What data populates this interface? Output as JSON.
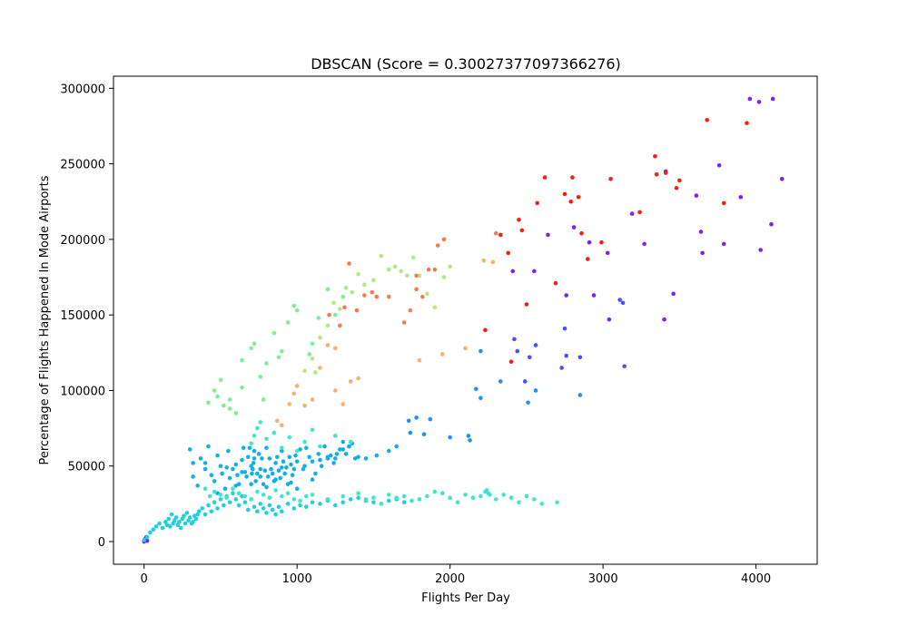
{
  "chart_data": {
    "type": "scatter",
    "title": "DBSCAN (Score = 0.30027377097366276)",
    "xlabel": "Flights Per Day",
    "ylabel": "Percentage of Flights Happened In Mode Airports",
    "xlim": [
      -200,
      4400
    ],
    "ylim": [
      -15000,
      308000
    ],
    "xticks": [
      0,
      1000,
      2000,
      3000,
      4000
    ],
    "xtick_labels": [
      "0",
      "1000",
      "2000",
      "3000",
      "4000"
    ],
    "yticks": [
      0,
      50000,
      100000,
      150000,
      200000,
      250000,
      300000
    ],
    "ytick_labels": [
      "0",
      "50000",
      "100000",
      "150000",
      "200000",
      "250000",
      "300000"
    ],
    "grid": false,
    "legend": "none",
    "colors": [
      "#7a1fff",
      "#4a4fff",
      "#1e90ff",
      "#0fb0e8",
      "#1fd0e0",
      "#3ce8c8",
      "#7af09a",
      "#b4e882",
      "#f8b06a",
      "#f87a4a",
      "#f81c14"
    ],
    "series": [
      {
        "x": [
          3960,
          4020,
          4110,
          4170,
          3760,
          3610,
          3640,
          3650,
          3790,
          3900,
          4100,
          4030,
          3190,
          3410,
          2410,
          2550,
          2640,
          2760,
          2810,
          2910,
          3030,
          3270,
          3460,
          3400,
          2940,
          3040,
          0,
          5,
          10,
          15,
          20
        ],
        "y": [
          293000,
          291000,
          293000,
          240000,
          249000,
          229000,
          205000,
          191000,
          197000,
          228000,
          210000,
          193000,
          217000,
          245000,
          179000,
          179000,
          203000,
          163000,
          208000,
          198000,
          191000,
          197000,
          164000,
          147000,
          163000,
          147000,
          0,
          1000,
          2000,
          3000,
          500
        ]
      },
      {
        "x": [
          2420,
          2560,
          2520,
          2760,
          2850,
          2750,
          2730,
          3110,
          3130,
          3140,
          2490,
          2440
        ],
        "y": [
          134000,
          130000,
          122000,
          123000,
          122000,
          141000,
          115000,
          160000,
          158000,
          116000,
          106000,
          126000
        ]
      },
      {
        "x": [
          2170,
          2200,
          2200,
          2330,
          2510,
          2560,
          2850,
          1740,
          1780,
          1870,
          1830,
          1730,
          2000,
          2120,
          2130
        ],
        "y": [
          101000,
          95000,
          126000,
          106000,
          92000,
          100000,
          97000,
          72000,
          82000,
          81000,
          71000,
          80000,
          69000,
          70000,
          67000
        ]
      },
      {
        "x": [
          300,
          320,
          370,
          400,
          420,
          440,
          460,
          480,
          500,
          510,
          530,
          550,
          560,
          580,
          600,
          610,
          620,
          640,
          650,
          660,
          670,
          680,
          690,
          700,
          705,
          710,
          715,
          720,
          730,
          740,
          750,
          760,
          770,
          780,
          790,
          800,
          810,
          820,
          830,
          840,
          850,
          860,
          870,
          880,
          890,
          900,
          910,
          920,
          930,
          940,
          950,
          960,
          970,
          980,
          990,
          1000,
          1020,
          1040,
          1060,
          1080,
          1100,
          1120,
          1140,
          1160,
          1180,
          1200,
          1220,
          1240,
          1260,
          1280,
          1300,
          1320,
          1340,
          1360,
          1400,
          1450,
          1520,
          1600,
          1650,
          320,
          350,
          400,
          480,
          540,
          600,
          640,
          700,
          720,
          760,
          800,
          860,
          900,
          960,
          1000,
          1050,
          1100,
          1150,
          1200,
          1250,
          1300,
          1340,
          1380
        ],
        "y": [
          61000,
          52000,
          55000,
          48000,
          63000,
          44000,
          40000,
          57000,
          50000,
          45000,
          35000,
          60000,
          42000,
          48000,
          51000,
          44000,
          38000,
          54000,
          62000,
          46000,
          43000,
          56000,
          62000,
          50000,
          45000,
          48000,
          52000,
          60000,
          40000,
          45000,
          58000,
          43000,
          55000,
          38000,
          47000,
          62000,
          43000,
          55000,
          48000,
          45000,
          40000,
          52000,
          56000,
          47000,
          42000,
          60000,
          53000,
          45000,
          49000,
          38000,
          56000,
          51000,
          44000,
          48000,
          57000,
          53000,
          61000,
          48000,
          62000,
          56000,
          53000,
          45000,
          58000,
          50000,
          63000,
          55000,
          57000,
          52000,
          58000,
          61000,
          66000,
          58000,
          63000,
          65000,
          56000,
          55000,
          57000,
          60000,
          63000,
          43000,
          37000,
          52000,
          32000,
          49000,
          37000,
          46000,
          38000,
          55000,
          48000,
          36000,
          41000,
          49000,
          39000,
          35000,
          50000,
          41000,
          54000,
          56000,
          55000,
          61000,
          63000,
          55000
        ]
      },
      {
        "x": [
          0,
          20,
          40,
          60,
          80,
          100,
          120,
          140,
          150,
          160,
          170,
          180,
          190,
          200,
          210,
          220,
          230,
          240,
          250,
          260,
          270,
          280,
          290,
          300,
          310,
          320,
          330,
          340,
          350,
          360,
          380,
          400,
          420,
          440,
          460,
          480,
          500,
          520,
          540,
          560,
          580,
          600,
          620,
          640,
          660,
          680,
          700,
          720,
          740,
          760,
          780,
          800,
          820,
          840,
          860,
          880,
          900,
          940,
          980,
          1020,
          1060,
          1100,
          1150,
          1200,
          1250,
          1300,
          1350,
          1400,
          1450,
          1500,
          1550,
          1600,
          1650,
          1700,
          1750
        ],
        "y": [
          1000,
          3000,
          6000,
          8000,
          10000,
          12000,
          9000,
          13000,
          11000,
          15000,
          10000,
          18000,
          12000,
          14000,
          16000,
          11000,
          13000,
          9000,
          15000,
          17000,
          12000,
          19000,
          14000,
          16000,
          12000,
          13000,
          17000,
          15000,
          18000,
          20000,
          22000,
          18000,
          24000,
          20000,
          26000,
          22000,
          28000,
          24000,
          30000,
          26000,
          32000,
          28000,
          24000,
          30000,
          26000,
          21000,
          28000,
          23000,
          20000,
          25000,
          22000,
          19000,
          24000,
          21000,
          18000,
          23000,
          20000,
          25000,
          22000,
          24000,
          23000,
          26000,
          25000,
          27000,
          24000,
          26000,
          28000,
          29000,
          27000,
          26000,
          25000,
          27000,
          28000,
          26000,
          27000
        ]
      },
      {
        "x": [
          400,
          430,
          460,
          500,
          540,
          580,
          620,
          660,
          700,
          740,
          780,
          820,
          860,
          900,
          940,
          980,
          1020,
          1060,
          1100,
          1200,
          1300,
          1400,
          1500,
          1600,
          1700,
          1800,
          1900,
          2000,
          2100,
          2200,
          2240,
          2250,
          2300,
          2350,
          2400,
          2450,
          2500,
          2550,
          2600,
          2700,
          700,
          720,
          740,
          760,
          800,
          850,
          900,
          950,
          1000,
          1050,
          1100,
          1150,
          1250,
          1350,
          1450,
          1550,
          1650,
          1750,
          1850,
          1950,
          2050,
          2150,
          2230,
          2260
        ],
        "y": [
          35000,
          30000,
          33000,
          31000,
          29000,
          35000,
          32000,
          30000,
          28000,
          33000,
          31000,
          29000,
          34000,
          30000,
          32000,
          28000,
          27000,
          30000,
          31000,
          28000,
          30000,
          32000,
          29000,
          31000,
          30000,
          28000,
          33000,
          29000,
          31000,
          30000,
          34000,
          32000,
          28000,
          31000,
          29000,
          26000,
          30000,
          28000,
          25000,
          26000,
          65000,
          70000,
          75000,
          79000,
          68000,
          72000,
          62000,
          69000,
          60000,
          66000,
          74000,
          63000,
          70000,
          66000,
          28000,
          25000,
          29000,
          27000,
          30000,
          32000,
          26000,
          29000,
          33000,
          31000
        ]
      },
      {
        "x": [
          420,
          460,
          500,
          520,
          560,
          600,
          640,
          700,
          720,
          760,
          800,
          850,
          900,
          940,
          980,
          1000,
          1080,
          1100,
          1140,
          1200,
          1250,
          1300,
          480,
          560,
          640,
          780,
          880
        ],
        "y": [
          92000,
          100000,
          107000,
          90000,
          94000,
          85000,
          120000,
          128000,
          131000,
          109000,
          118000,
          138000,
          126000,
          145000,
          156000,
          153000,
          124000,
          131000,
          148000,
          167000,
          150000,
          162000,
          96000,
          88000,
          102000,
          94000,
          122000
        ]
      },
      {
        "x": [
          1050,
          1100,
          1120,
          1150,
          1200,
          1240,
          1280,
          1320,
          1360,
          1400,
          1440,
          1500,
          1550,
          1600,
          1640,
          1680,
          1720,
          1760,
          1800,
          1850,
          1900,
          1960,
          2000
        ],
        "y": [
          113000,
          121000,
          112000,
          135000,
          143000,
          158000,
          154000,
          168000,
          165000,
          177000,
          170000,
          173000,
          189000,
          180000,
          182000,
          179000,
          176000,
          188000,
          176000,
          164000,
          155000,
          175000,
          182000
        ]
      },
      {
        "x": [
          870,
          900,
          950,
          980,
          1000,
          1050,
          1100,
          1150,
          1200,
          1250,
          1300,
          1350,
          1400,
          1800,
          1950,
          2100,
          2220,
          2280,
          1250
        ],
        "y": [
          80000,
          77000,
          91000,
          98000,
          103000,
          90000,
          94000,
          115000,
          130000,
          128000,
          91000,
          106000,
          108000,
          120000,
          124000,
          128000,
          186000,
          185000,
          100000
        ]
      },
      {
        "x": [
          1210,
          1280,
          1310,
          1340,
          1390,
          1440,
          1490,
          1520,
          1600,
          1700,
          1740,
          1780,
          1820,
          1860,
          1900,
          1920,
          1960,
          2300,
          1780
        ],
        "y": [
          150000,
          143000,
          155000,
          184000,
          153000,
          163000,
          165000,
          162000,
          162000,
          145000,
          153000,
          176000,
          162000,
          180000,
          180000,
          196000,
          200000,
          204000,
          167000
        ]
      },
      {
        "x": [
          2230,
          2400,
          2470,
          2500,
          2570,
          2620,
          2690,
          2750,
          2800,
          2840,
          2900,
          2990,
          3050,
          3340,
          3350,
          3410,
          3480,
          3500,
          3680,
          3790,
          3940,
          3240,
          2860,
          2790,
          2450,
          2330,
          2380
        ],
        "y": [
          140000,
          119000,
          206000,
          157000,
          224000,
          241000,
          171000,
          230000,
          241000,
          228000,
          187000,
          198000,
          240000,
          255000,
          243000,
          244000,
          234000,
          239000,
          279000,
          224000,
          277000,
          218000,
          204000,
          225000,
          213000,
          203000,
          191000
        ]
      }
    ]
  }
}
